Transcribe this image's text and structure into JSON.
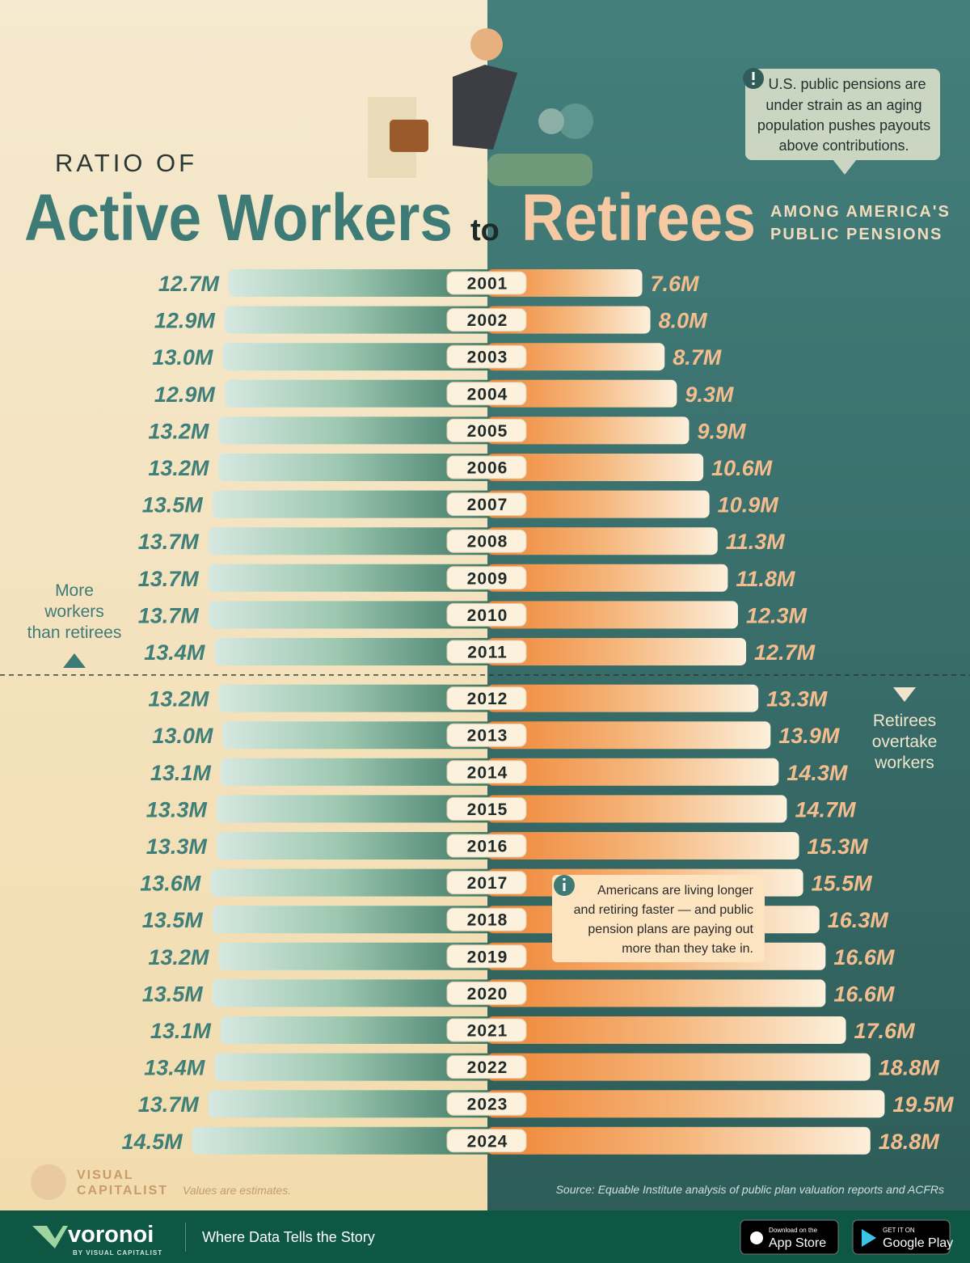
{
  "chart_data": {
    "type": "butterfly",
    "title_prefix": "RATIO OF",
    "title_joiner": "to",
    "subtitle": [
      "AMONG AMERICA'S",
      "PUBLIC PENSIONS"
    ],
    "categories": [
      "2001",
      "2002",
      "2003",
      "2004",
      "2005",
      "2006",
      "2007",
      "2008",
      "2009",
      "2010",
      "2011",
      "2012",
      "2013",
      "2014",
      "2015",
      "2016",
      "2017",
      "2018",
      "2019",
      "2020",
      "2021",
      "2022",
      "2023",
      "2024"
    ],
    "series": [
      {
        "name": "Active Workers",
        "color": "#3e7b77",
        "label_color": "#3f7f79",
        "values": [
          12.7,
          12.9,
          13.0,
          12.9,
          13.2,
          13.2,
          13.5,
          13.7,
          13.7,
          13.7,
          13.4,
          13.2,
          13.0,
          13.1,
          13.3,
          13.3,
          13.6,
          13.5,
          13.2,
          13.5,
          13.1,
          13.4,
          13.7,
          14.5
        ],
        "value_labels": [
          "12.7M",
          "12.9M",
          "13.0M",
          "12.9M",
          "13.2M",
          "13.2M",
          "13.5M",
          "13.7M",
          "13.7M",
          "13.7M",
          "13.4M",
          "13.2M",
          "13.0M",
          "13.1M",
          "13.3M",
          "13.3M",
          "13.6M",
          "13.5M",
          "13.2M",
          "13.5M",
          "13.1M",
          "13.4M",
          "13.7M",
          "14.5M"
        ]
      },
      {
        "name": "Retirees",
        "color": "#ef8a3c",
        "label_color": "#f4bd8e",
        "values": [
          7.6,
          8.0,
          8.7,
          9.3,
          9.9,
          10.6,
          10.9,
          11.3,
          11.8,
          12.3,
          12.7,
          13.3,
          13.9,
          14.3,
          14.7,
          15.3,
          15.5,
          16.3,
          16.6,
          16.6,
          17.6,
          18.8,
          19.5,
          18.8
        ],
        "value_labels": [
          "7.6M",
          "8.0M",
          "8.7M",
          "9.3M",
          "9.9M",
          "10.6M",
          "10.9M",
          "11.3M",
          "11.8M",
          "12.3M",
          "12.7M",
          "13.3M",
          "13.9M",
          "14.3M",
          "14.7M",
          "15.3M",
          "15.5M",
          "16.3M",
          "16.6M",
          "16.6M",
          "17.6M",
          "18.8M",
          "19.5M",
          "18.8M"
        ]
      }
    ],
    "annotations": {
      "top_callout": [
        "U.S. public pensions are",
        "under strain as an aging",
        "population pushes payouts",
        "above contributions."
      ],
      "middle_callout": [
        "Americans are living longer",
        "and retiring faster — and public",
        "pension plans are paying out",
        "more than they take in."
      ],
      "left_note": [
        "More",
        "workers",
        "than retirees"
      ],
      "right_note": [
        "Retirees",
        "overtake",
        "workers"
      ]
    },
    "note": "Values are estimates.",
    "source": "Source: Equable Institute analysis of public plan valuation reports and ACFRs"
  },
  "logo": [
    "VISUAL",
    "CAPITALIST"
  ],
  "footer": {
    "brand": "voronoi",
    "brand_sub": "BY VISUAL CAPITALIST",
    "tagline": "Where Data Tells the Story",
    "app_store": [
      "Download on the",
      "App Store"
    ],
    "google_play": [
      "GET IT ON",
      "Google Play"
    ]
  }
}
